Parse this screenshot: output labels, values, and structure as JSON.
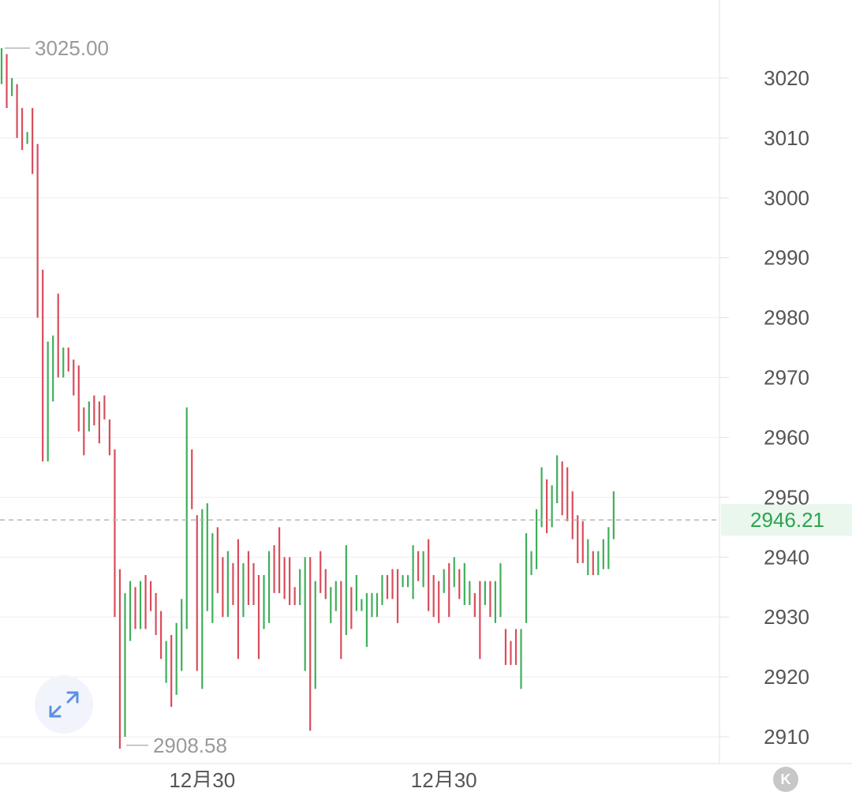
{
  "chart_data": {
    "type": "ohlc",
    "title": "",
    "xlabel": "",
    "ylabel": "",
    "ylim": [
      2906,
      3030
    ],
    "y_ticks": [
      2910,
      2920,
      2930,
      2940,
      2950,
      2960,
      2970,
      2980,
      2990,
      3000,
      3010,
      3020
    ],
    "y_axis_position": "right",
    "x_ticks": [
      {
        "bar_index": 39,
        "label": "12月30"
      },
      {
        "bar_index": 86,
        "label": "12月30"
      }
    ],
    "grid": true,
    "up_color": "#3fae5a",
    "down_color": "#d94c5b",
    "high_label": "3025.00",
    "low_label": "2908.58",
    "last_price_label": "2946.21",
    "last_price": 2946.21,
    "bars": [
      [
        3020,
        3025,
        3019,
        3024
      ],
      [
        3023,
        3024,
        3015,
        3016
      ],
      [
        3016,
        3020,
        3017,
        3019
      ],
      [
        3019,
        3019,
        3010,
        3011
      ],
      [
        3015,
        3015,
        3008,
        3009
      ],
      [
        3008,
        3011,
        3009,
        3011
      ],
      [
        3015,
        3015,
        3004,
        3005
      ],
      [
        3009,
        3009,
        2980,
        2981
      ],
      [
        2988,
        2988,
        2956,
        2957
      ],
      [
        2956,
        2976,
        2956,
        2976
      ],
      [
        2967,
        2977,
        2966,
        2974
      ],
      [
        2984,
        2984,
        2970,
        2971
      ],
      [
        2970,
        2975,
        2970,
        2975
      ],
      [
        2975,
        2975,
        2971,
        2972
      ],
      [
        2973,
        2973,
        2967,
        2968
      ],
      [
        2972,
        2972,
        2961,
        2962
      ],
      [
        2965,
        2965,
        2957,
        2961
      ],
      [
        2961,
        2966,
        2961,
        2965
      ],
      [
        2967,
        2967,
        2962,
        2962
      ],
      [
        2961,
        2966,
        2959,
        2960
      ],
      [
        2967,
        2967,
        2963,
        2963
      ],
      [
        2963,
        2963,
        2957,
        2958
      ],
      [
        2958,
        2958,
        2930,
        2931
      ],
      [
        2938,
        2938,
        2908,
        2909
      ],
      [
        2910,
        2934,
        2910,
        2934
      ],
      [
        2926,
        2936,
        2926,
        2934
      ],
      [
        2935,
        2935,
        2928,
        2929
      ],
      [
        2929,
        2936,
        2928,
        2936
      ],
      [
        2937,
        2937,
        2928,
        2929
      ],
      [
        2936,
        2936,
        2931,
        2931
      ],
      [
        2934,
        2934,
        2927,
        2928
      ],
      [
        2931,
        2931,
        2923,
        2924
      ],
      [
        2919,
        2926,
        2919,
        2926
      ],
      [
        2927,
        2927,
        2915,
        2916
      ],
      [
        2917,
        2929,
        2917,
        2928
      ],
      [
        2921,
        2933,
        2921,
        2933
      ],
      [
        2928,
        2965,
        2928,
        2964
      ],
      [
        2958,
        2958,
        2948,
        2948
      ],
      [
        2947,
        2947,
        2921,
        2922
      ],
      [
        2918,
        2948,
        2918,
        2948
      ],
      [
        2931,
        2949,
        2931,
        2945
      ],
      [
        2930,
        2944,
        2929,
        2944
      ],
      [
        2945,
        2945,
        2934,
        2935
      ],
      [
        2940,
        2940,
        2930,
        2931
      ],
      [
        2931,
        2941,
        2930,
        2940
      ],
      [
        2939,
        2939,
        2932,
        2933
      ],
      [
        2943,
        2943,
        2923,
        2924
      ],
      [
        2930,
        2939,
        2930,
        2939
      ],
      [
        2941,
        2941,
        2932,
        2933
      ],
      [
        2939,
        2939,
        2932,
        2933
      ],
      [
        2937,
        2937,
        2923,
        2924
      ],
      [
        2928,
        2937,
        2928,
        2937
      ],
      [
        2929,
        2941,
        2929,
        2940
      ],
      [
        2942,
        2942,
        2934,
        2935
      ],
      [
        2945,
        2945,
        2934,
        2935
      ],
      [
        2940,
        2940,
        2933,
        2934
      ],
      [
        2940,
        2940,
        2932,
        2933
      ],
      [
        2935,
        2935,
        2932,
        2933
      ],
      [
        2932,
        2938,
        2932,
        2938
      ],
      [
        2921,
        2940,
        2921,
        2940
      ],
      [
        2940,
        2940,
        2911,
        2912
      ],
      [
        2918,
        2936,
        2918,
        2935
      ],
      [
        2941,
        2941,
        2934,
        2935
      ],
      [
        2938,
        2938,
        2933,
        2934
      ],
      [
        2929,
        2935,
        2929,
        2935
      ],
      [
        2931,
        2936,
        2931,
        2936
      ],
      [
        2936,
        2936,
        2923,
        2923
      ],
      [
        2927,
        2942,
        2927,
        2939
      ],
      [
        2935,
        2935,
        2928,
        2930
      ],
      [
        2931,
        2937,
        2931,
        2937
      ],
      [
        2931,
        2933,
        2931,
        2932
      ],
      [
        2925,
        2934,
        2925,
        2933
      ],
      [
        2931,
        2934,
        2930,
        2934
      ],
      [
        2933,
        2934,
        2930,
        2934
      ],
      [
        2933,
        2937,
        2932,
        2937
      ],
      [
        2936,
        2937,
        2933,
        2933
      ],
      [
        2938,
        2938,
        2933,
        2934
      ],
      [
        2938,
        2938,
        2929,
        2930
      ],
      [
        2935,
        2937,
        2935,
        2937
      ],
      [
        2935,
        2937,
        2935,
        2937
      ],
      [
        2937,
        2942,
        2933,
        2942
      ],
      [
        2941,
        2941,
        2936,
        2937
      ],
      [
        2935,
        2941,
        2935,
        2941
      ],
      [
        2943,
        2943,
        2931,
        2932
      ],
      [
        2937,
        2937,
        2930,
        2931
      ],
      [
        2936,
        2936,
        2929,
        2930
      ],
      [
        2935,
        2938,
        2934,
        2938
      ],
      [
        2939,
        2939,
        2930,
        2931
      ],
      [
        2936,
        2940,
        2935,
        2940
      ],
      [
        2938,
        2938,
        2933,
        2934
      ],
      [
        2932,
        2939,
        2932,
        2939
      ],
      [
        2932,
        2936,
        2932,
        2936
      ],
      [
        2934,
        2934,
        2930,
        2931
      ],
      [
        2936,
        2936,
        2923,
        2924
      ],
      [
        2932,
        2936,
        2932,
        2936
      ],
      [
        2933,
        2936,
        2930,
        2930
      ],
      [
        2929,
        2936,
        2929,
        2936
      ],
      [
        2930,
        2939,
        2930,
        2939
      ],
      [
        2928,
        2928,
        2922,
        2923
      ],
      [
        2926,
        2926,
        2922,
        2922
      ],
      [
        2928,
        2928,
        2922,
        2925
      ],
      [
        2918,
        2928,
        2918,
        2928
      ],
      [
        2929,
        2944,
        2929,
        2943
      ],
      [
        2937,
        2941,
        2937,
        2941
      ],
      [
        2938,
        2948,
        2938,
        2948
      ],
      [
        2945,
        2955,
        2945,
        2955
      ],
      [
        2953,
        2953,
        2944,
        2944
      ],
      [
        2945,
        2952,
        2945,
        2952
      ],
      [
        2949,
        2957,
        2949,
        2957
      ],
      [
        2956,
        2956,
        2947,
        2953
      ],
      [
        2955,
        2955,
        2946,
        2946
      ],
      [
        2951,
        2951,
        2943,
        2943
      ],
      [
        2947,
        2947,
        2939,
        2940
      ],
      [
        2946,
        2946,
        2939,
        2940
      ],
      [
        2939,
        2943,
        2937,
        2943
      ],
      [
        2941,
        2941,
        2937,
        2938
      ],
      [
        2940,
        2941,
        2937,
        2941
      ],
      [
        2938,
        2943,
        2938,
        2943
      ],
      [
        2939,
        2945,
        2938,
        2945
      ],
      [
        2946,
        2951,
        2943,
        2946
      ]
    ]
  }
}
